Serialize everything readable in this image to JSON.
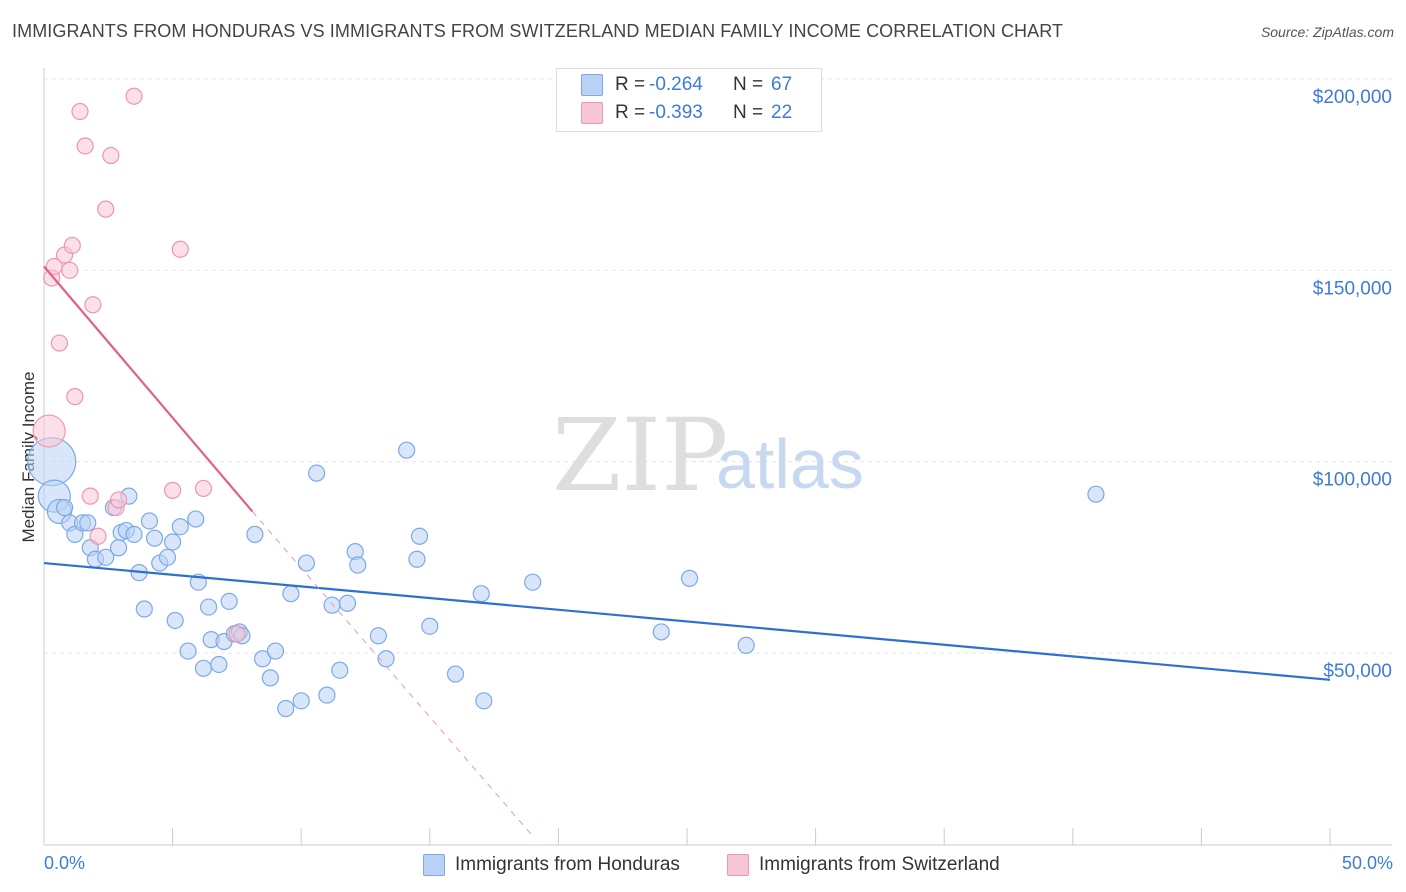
{
  "chart_data": {
    "type": "scatter",
    "title": "IMMIGRANTS FROM HONDURAS VS IMMIGRANTS FROM SWITZERLAND MEDIAN FAMILY INCOME CORRELATION CHART",
    "source": "Source: ZipAtlas.com",
    "xlabel": "",
    "ylabel": "Median Family Income",
    "xlim": [
      0,
      50
    ],
    "ylim": [
      0,
      210000
    ],
    "x_tick_labels": [
      "0.0%",
      "50.0%"
    ],
    "y_ticks": [
      50000,
      100000,
      150000,
      200000
    ],
    "y_tick_labels": [
      "$50,000",
      "$100,000",
      "$150,000",
      "$200,000"
    ],
    "grid": true,
    "watermark": {
      "zip": "ZIP",
      "atlas": "atlas"
    },
    "legend": {
      "rows": [
        {
          "r_label": "R =",
          "r_value": "-0.264",
          "n_label": "N =",
          "n_value": "67"
        },
        {
          "r_label": "R =",
          "r_value": "-0.393",
          "n_label": "N =",
          "n_value": "22"
        }
      ]
    },
    "series": [
      {
        "name": "Immigrants from Honduras",
        "color": "#7aaae8",
        "fill": "#b9d1f4",
        "trend_color": "#2e6fd0",
        "trend": {
          "x": [
            0,
            50
          ],
          "y": [
            73500,
            43000
          ]
        },
        "points": [
          [
            0.3,
            100000,
            3
          ],
          [
            0.4,
            91000,
            2
          ],
          [
            0.6,
            87000,
            1.5
          ],
          [
            0.8,
            88000,
            1
          ],
          [
            1.0,
            84000,
            1
          ],
          [
            1.2,
            81000,
            1
          ],
          [
            1.5,
            84000,
            1
          ],
          [
            1.7,
            84000,
            1
          ],
          [
            1.8,
            77500,
            1
          ],
          [
            2.0,
            74500,
            1
          ],
          [
            2.4,
            75000,
            1
          ],
          [
            2.7,
            88000,
            1
          ],
          [
            2.9,
            77500,
            1
          ],
          [
            3.0,
            81500,
            1
          ],
          [
            3.2,
            82000,
            1
          ],
          [
            3.3,
            91000,
            1
          ],
          [
            3.5,
            81000,
            1
          ],
          [
            3.7,
            71000,
            1
          ],
          [
            3.9,
            61500,
            1
          ],
          [
            4.1,
            84500,
            1
          ],
          [
            4.3,
            80000,
            1
          ],
          [
            4.5,
            73500,
            1
          ],
          [
            4.8,
            75000,
            1
          ],
          [
            5.0,
            79000,
            1
          ],
          [
            5.1,
            58500,
            1
          ],
          [
            5.3,
            83000,
            1
          ],
          [
            5.6,
            50500,
            1
          ],
          [
            5.9,
            85000,
            1
          ],
          [
            6.0,
            68500,
            1
          ],
          [
            6.2,
            46000,
            1
          ],
          [
            6.4,
            62000,
            1
          ],
          [
            6.5,
            53500,
            1
          ],
          [
            6.8,
            47000,
            1
          ],
          [
            7.0,
            53000,
            1
          ],
          [
            7.2,
            63500,
            1
          ],
          [
            7.4,
            55000,
            1
          ],
          [
            7.6,
            55500,
            1
          ],
          [
            7.7,
            54500,
            1
          ],
          [
            8.2,
            81000,
            1
          ],
          [
            8.5,
            48500,
            1
          ],
          [
            8.8,
            43500,
            1
          ],
          [
            9.0,
            50500,
            1
          ],
          [
            9.4,
            35500,
            1
          ],
          [
            9.6,
            65500,
            1
          ],
          [
            10.0,
            37500,
            1
          ],
          [
            10.2,
            73500,
            1
          ],
          [
            10.6,
            97000,
            1
          ],
          [
            11.0,
            39000,
            1
          ],
          [
            11.2,
            62500,
            1
          ],
          [
            11.5,
            45500,
            1
          ],
          [
            11.8,
            63000,
            1
          ],
          [
            12.1,
            76500,
            1
          ],
          [
            12.2,
            73000,
            1
          ],
          [
            13.0,
            54500,
            1
          ],
          [
            13.3,
            48500,
            1
          ],
          [
            14.1,
            103000,
            1
          ],
          [
            14.5,
            74500,
            1
          ],
          [
            14.6,
            80500,
            1
          ],
          [
            15.0,
            57000,
            1
          ],
          [
            16.0,
            44500,
            1
          ],
          [
            17.0,
            65500,
            1
          ],
          [
            17.1,
            37500,
            1
          ],
          [
            19.0,
            68500,
            1
          ],
          [
            24.0,
            55500,
            1
          ],
          [
            25.1,
            69500,
            1
          ],
          [
            27.3,
            52000,
            1
          ],
          [
            40.9,
            91500,
            1
          ]
        ]
      },
      {
        "name": "Immigrants from Switzerland",
        "color": "#ee95b3",
        "fill": "#f8c7d7",
        "trend_color": "#e0608e",
        "trend": {
          "x": [
            0,
            8.1
          ],
          "y": [
            151000,
            87000
          ]
        },
        "trend_dash_extension": {
          "x": [
            8.1,
            19
          ],
          "y": [
            87000,
            0
          ]
        },
        "points": [
          [
            0.2,
            108000,
            2
          ],
          [
            0.3,
            148000,
            1
          ],
          [
            0.4,
            151000,
            1
          ],
          [
            0.6,
            131000,
            1
          ],
          [
            0.8,
            154000,
            1
          ],
          [
            1.0,
            150000,
            1
          ],
          [
            1.1,
            156500,
            1
          ],
          [
            1.2,
            117000,
            1
          ],
          [
            1.4,
            191500,
            1
          ],
          [
            1.6,
            182500,
            1
          ],
          [
            1.8,
            91000,
            1
          ],
          [
            1.9,
            141000,
            1
          ],
          [
            2.1,
            80500,
            1
          ],
          [
            2.4,
            166000,
            1
          ],
          [
            2.6,
            180000,
            1
          ],
          [
            2.8,
            88000,
            1
          ],
          [
            2.9,
            90000,
            1
          ],
          [
            3.5,
            195500,
            1
          ],
          [
            5.0,
            92500,
            1
          ],
          [
            5.3,
            155500,
            1
          ],
          [
            6.2,
            93000,
            1
          ],
          [
            7.5,
            55000,
            1
          ]
        ]
      }
    ]
  }
}
